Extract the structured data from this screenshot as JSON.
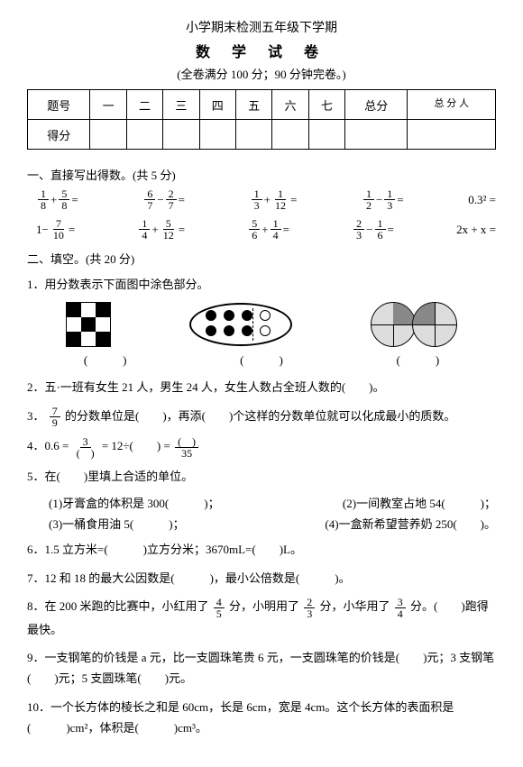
{
  "header": {
    "line1": "小学期末检测五年级下学期",
    "line2": "数 学 试 卷",
    "line3": "(全卷满分 100 分；90 分钟完卷。)"
  },
  "scoreTable": {
    "row1": [
      "题号",
      "一",
      "二",
      "三",
      "四",
      "五",
      "六",
      "七",
      "总分",
      "总 分\n人"
    ],
    "row2Label": "得分"
  },
  "sec1": {
    "title": "一、直接写出得数。(共 5 分)",
    "r1": {
      "a": {
        "n1": "1",
        "d1": "8",
        "op": "+",
        "n2": "5",
        "d2": "8"
      },
      "b": {
        "n1": "6",
        "d1": "7",
        "op": "−",
        "n2": "2",
        "d2": "7"
      },
      "c": {
        "n1": "1",
        "d1": "3",
        "op": "+",
        "n2": "1",
        "d2": "12"
      },
      "d": {
        "n1": "1",
        "d1": "2",
        "op": "−",
        "n2": "1",
        "d2": "3"
      },
      "e": "0.3² ="
    },
    "r2": {
      "a_pre": "1−",
      "a": {
        "n": "7",
        "d": "10"
      },
      "b": {
        "n1": "1",
        "d1": "4",
        "op": "+",
        "n2": "5",
        "d2": "12"
      },
      "c": {
        "n1": "5",
        "d1": "6",
        "op": "+",
        "n2": "1",
        "d2": "4"
      },
      "d": {
        "n1": "2",
        "d1": "3",
        "op": "−",
        "n2": "1",
        "d2": "6"
      },
      "e": "2x + x ="
    }
  },
  "sec2": {
    "title": "二、填空。(共 20 分)",
    "q1": "1．用分数表示下面图中涂色部分。",
    "paren": "(　　　)",
    "q2": "2．五·一班有女生 21 人，男生 24 人，女生人数占全班人数的(　　)。",
    "q3_a": "3．",
    "q3_frac": {
      "n": "7",
      "d": "9"
    },
    "q3_b": "的分数单位是(　　)，再添(　　)个这样的分数单位就可以化成最小的质数。",
    "q4_a": "4．0.6 =",
    "q4_f1": {
      "n": "3",
      "d": "(　)"
    },
    "q4_b": "= 12÷(　　) =",
    "q4_f2": {
      "n": "(　)",
      "d": "35"
    },
    "q5": "5．在(　　)里填上合适的单位。",
    "q5_1": "(1)牙膏盒的体积是 300(　　　)；",
    "q5_2": "(2)一间教室占地 54(　　　)；",
    "q5_3": "(3)一桶食用油 5(　　　)；",
    "q5_4": "(4)一盒新希望营养奶 250(　　)。",
    "q6": "6．1.5 立方米=(　　　)立方分米；3670mL=(　　)L。",
    "q7": "7．12 和 18 的最大公因数是(　　　)，最小公倍数是(　　　)。",
    "q8_a": "8．在 200 米跑的比赛中，小红用了",
    "q8_f1": {
      "n": "4",
      "d": "5"
    },
    "q8_b": "分，小明用了",
    "q8_f2": {
      "n": "2",
      "d": "3"
    },
    "q8_c": "分，小华用了",
    "q8_f3": {
      "n": "3",
      "d": "4"
    },
    "q8_d": "分。(　　)跑得最快。",
    "q9": "9．一支钢笔的价钱是 a 元，比一支圆珠笔贵 6 元，一支圆珠笔的价钱是(　　)元；3 支钢笔(　　)元；5 支圆珠笔(　　)元。",
    "q10": "10．一个长方体的棱长之和是 60cm，长是 6cm，宽是 4cm。这个长方体的表面积是(　　　)cm²，体积是(　　　)cm³。"
  }
}
